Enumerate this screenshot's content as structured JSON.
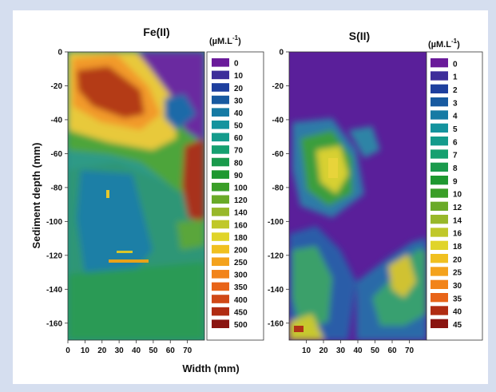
{
  "chart_data": [
    {
      "type": "heatmap",
      "title": "Fe(II)",
      "unit_main": "(µM.L",
      "unit_sup": "-1",
      "unit_close": ")",
      "ylabel": "Sediment depth (mm)",
      "xlabel": "",
      "xlim": [
        0,
        80
      ],
      "ylim": [
        -170,
        0
      ],
      "xticks": [
        "0",
        "10",
        "20",
        "30",
        "40",
        "50",
        "60",
        "70"
      ],
      "yticks": [
        "0",
        "-20",
        "-40",
        "-60",
        "-80",
        "-100",
        "-120",
        "-140",
        "-160"
      ],
      "legend": [
        {
          "label": "0",
          "color": "#6a1a9a"
        },
        {
          "label": "10",
          "color": "#3d2d9a"
        },
        {
          "label": "20",
          "color": "#1e3f9e"
        },
        {
          "label": "30",
          "color": "#185aa0"
        },
        {
          "label": "40",
          "color": "#167aa4"
        },
        {
          "label": "50",
          "color": "#14939e"
        },
        {
          "label": "60",
          "color": "#149b8c"
        },
        {
          "label": "70",
          "color": "#16a070"
        },
        {
          "label": "80",
          "color": "#1a9a4c"
        },
        {
          "label": "90",
          "color": "#1e9830"
        },
        {
          "label": "100",
          "color": "#3a9e28"
        },
        {
          "label": "120",
          "color": "#6aaa28"
        },
        {
          "label": "140",
          "color": "#98b82a"
        },
        {
          "label": "160",
          "color": "#c0c82a"
        },
        {
          "label": "180",
          "color": "#e0d42a"
        },
        {
          "label": "200",
          "color": "#f0c020"
        },
        {
          "label": "250",
          "color": "#f4a21c"
        },
        {
          "label": "300",
          "color": "#f2841a"
        },
        {
          "label": "350",
          "color": "#e86418"
        },
        {
          "label": "400",
          "color": "#d04816"
        },
        {
          "label": "450",
          "color": "#b02c12"
        },
        {
          "label": "500",
          "color": "#8a1410"
        }
      ]
    },
    {
      "type": "heatmap",
      "title": "S(II)",
      "unit_main": "(µM.L",
      "unit_sup": "-1",
      "unit_close": ")",
      "ylabel": "",
      "xlabel": "",
      "xlim": [
        0,
        80
      ],
      "ylim": [
        -170,
        0
      ],
      "xticks": [
        "10",
        "20",
        "30",
        "40",
        "50",
        "60",
        "70"
      ],
      "yticks": [
        "0",
        "-20",
        "-40",
        "-60",
        "-80",
        "-100",
        "-120",
        "-140",
        "-160"
      ],
      "legend": [
        {
          "label": "0",
          "color": "#6a1a9a"
        },
        {
          "label": "1",
          "color": "#3d2d9a"
        },
        {
          "label": "2",
          "color": "#1e3f9e"
        },
        {
          "label": "3",
          "color": "#185aa0"
        },
        {
          "label": "4",
          "color": "#167aa4"
        },
        {
          "label": "5",
          "color": "#14939e"
        },
        {
          "label": "6",
          "color": "#149b8c"
        },
        {
          "label": "7",
          "color": "#16a070"
        },
        {
          "label": "8",
          "color": "#1a9a4c"
        },
        {
          "label": "9",
          "color": "#1e9830"
        },
        {
          "label": "10",
          "color": "#3a9e28"
        },
        {
          "label": "12",
          "color": "#6aaa28"
        },
        {
          "label": "14",
          "color": "#98b82a"
        },
        {
          "label": "16",
          "color": "#c0c82a"
        },
        {
          "label": "18",
          "color": "#e0d42a"
        },
        {
          "label": "20",
          "color": "#f0c020"
        },
        {
          "label": "25",
          "color": "#f4a21c"
        },
        {
          "label": "30",
          "color": "#f2841a"
        },
        {
          "label": "35",
          "color": "#e86418"
        },
        {
          "label": "40",
          "color": "#b02c12"
        },
        {
          "label": "45",
          "color": "#8a1410"
        }
      ]
    }
  ],
  "shared_xlabel": "Width (mm)",
  "shared_ylabel": "Sediment depth (mm)"
}
